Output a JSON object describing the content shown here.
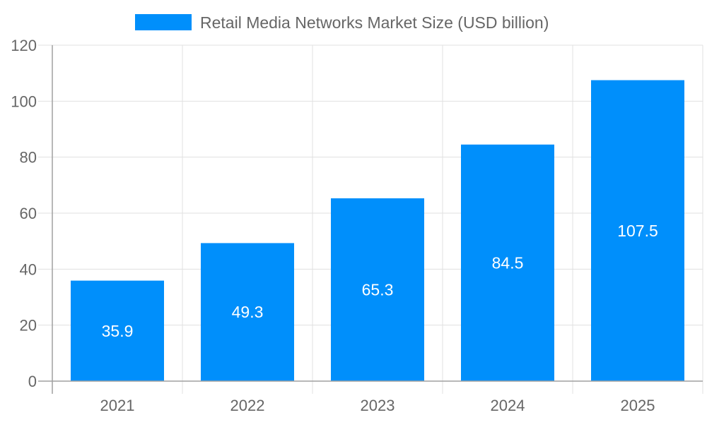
{
  "chart_data": {
    "type": "bar",
    "title": "",
    "xlabel": "",
    "ylabel": "",
    "categories": [
      "2021",
      "2022",
      "2023",
      "2024",
      "2025"
    ],
    "series": [
      {
        "name": "Retail Media Networks Market Size (USD billion)",
        "values": [
          35.9,
          49.3,
          65.3,
          84.5,
          107.5
        ]
      }
    ],
    "data_labels": [
      "35.9",
      "49.3",
      "65.3",
      "84.5",
      "107.5"
    ],
    "ylim": [
      0,
      120
    ],
    "yticks": [
      "0",
      "20",
      "40",
      "60",
      "80",
      "100",
      "120"
    ],
    "grid": true,
    "legend_position": "top",
    "colors": {
      "bar": "#008ffb",
      "grid": "#e0e0e0",
      "axis": "#a0a0a0",
      "text": "#666666",
      "label": "#ffffff"
    }
  }
}
